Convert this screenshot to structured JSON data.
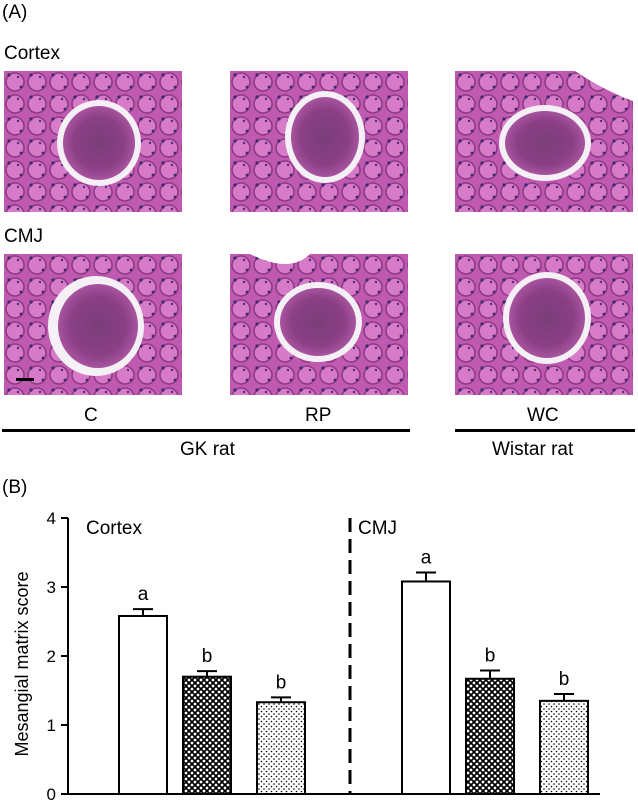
{
  "panel_a": {
    "label": "(A)",
    "rows": [
      "Cortex",
      "CMJ"
    ],
    "columns": [
      "C",
      "RP",
      "WC"
    ],
    "groups": [
      "GK rat",
      "Wistar rat"
    ]
  },
  "panel_b": {
    "label": "(B)"
  },
  "chart_data": {
    "type": "bar",
    "ylabel": "Mesangial matrix score",
    "ylim": [
      0,
      4
    ],
    "yticks": [
      "0",
      "1",
      "2",
      "3",
      "4"
    ],
    "sections": [
      "Cortex",
      "CMJ"
    ],
    "series": [
      {
        "group": "C",
        "fill": "white",
        "values": [
          2.58,
          3.08
        ],
        "errors": [
          0.1,
          0.13
        ],
        "letters": [
          "a",
          "a"
        ]
      },
      {
        "group": "RP",
        "fill": "crosshatch",
        "values": [
          1.7,
          1.67
        ],
        "errors": [
          0.08,
          0.12
        ],
        "letters": [
          "b",
          "b"
        ]
      },
      {
        "group": "WC",
        "fill": "dotted",
        "values": [
          1.33,
          1.35
        ],
        "errors": [
          0.07,
          0.1
        ],
        "letters": [
          "b",
          "b"
        ]
      }
    ],
    "grid": false,
    "separator": "dashed vertical line between Cortex and CMJ"
  }
}
